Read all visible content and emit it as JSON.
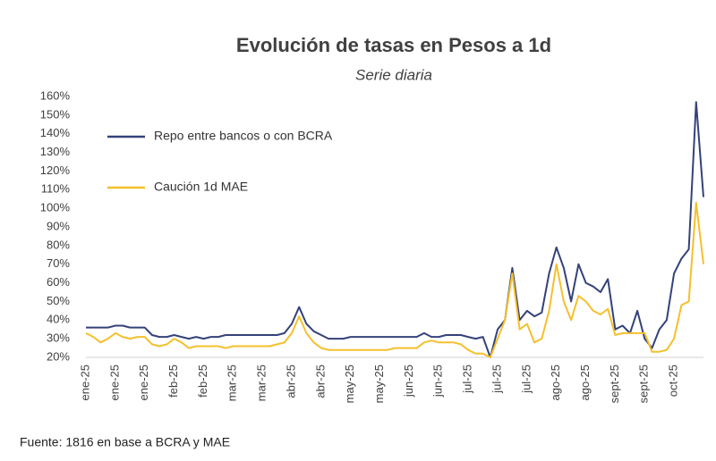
{
  "chart_data": {
    "type": "line",
    "title": "Evolución de tasas en Pesos a 1d",
    "subtitle": "Serie diaria",
    "source": "Fuente: 1816 en base a BCRA y MAE",
    "categories": [
      "ene-25",
      null,
      null,
      null,
      "ene-25",
      null,
      null,
      null,
      "ene-25",
      null,
      null,
      null,
      "feb-25",
      null,
      null,
      null,
      "feb-25",
      null,
      null,
      null,
      "mar-25",
      null,
      null,
      null,
      "mar-25",
      null,
      null,
      null,
      "abr-25",
      null,
      null,
      null,
      "abr-25",
      null,
      null,
      null,
      "may-25",
      null,
      null,
      null,
      "may-25",
      null,
      null,
      null,
      "jun-25",
      null,
      null,
      null,
      "jun-25",
      null,
      null,
      null,
      "jul-25",
      null,
      null,
      null,
      "jul-25",
      null,
      null,
      null,
      "jul-25",
      null,
      null,
      null,
      "ago-25",
      null,
      null,
      null,
      "ago-25",
      null,
      null,
      null,
      "sept-25",
      null,
      null,
      null,
      "sept-25",
      null,
      null,
      null,
      "oct-25",
      null,
      null,
      null,
      null
    ],
    "series": [
      {
        "name": "Repo entre bancos o con BCRA",
        "color": "#34427a",
        "values": [
          36,
          36,
          36,
          36,
          37,
          37,
          36,
          36,
          36,
          32,
          31,
          31,
          32,
          31,
          30,
          31,
          30,
          31,
          31,
          32,
          32,
          32,
          32,
          32,
          32,
          32,
          32,
          33,
          38,
          47,
          38,
          34,
          32,
          30,
          30,
          30,
          31,
          31,
          31,
          31,
          31,
          31,
          31,
          31,
          31,
          31,
          33,
          31,
          31,
          32,
          32,
          32,
          31,
          30,
          31,
          20,
          35,
          40,
          68,
          40,
          45,
          42,
          44,
          65,
          79,
          68,
          50,
          70,
          60,
          58,
          55,
          62,
          35,
          37,
          33,
          45,
          30,
          25,
          35,
          40,
          65,
          73,
          78,
          157,
          106
        ]
      },
      {
        "name": "Caución 1d MAE",
        "color": "#f5c02c",
        "values": [
          33,
          31,
          28,
          30,
          33,
          31,
          30,
          31,
          31,
          27,
          26,
          27,
          30,
          28,
          25,
          26,
          26,
          26,
          26,
          25,
          26,
          26,
          26,
          26,
          26,
          26,
          27,
          28,
          33,
          42,
          33,
          28,
          25,
          24,
          24,
          24,
          24,
          24,
          24,
          24,
          24,
          24,
          25,
          25,
          25,
          25,
          28,
          29,
          28,
          28,
          28,
          27,
          24,
          22,
          22,
          20,
          30,
          40,
          65,
          35,
          38,
          28,
          30,
          45,
          70,
          50,
          40,
          53,
          50,
          45,
          43,
          46,
          32,
          33,
          33,
          33,
          33,
          23,
          23,
          24,
          30,
          48,
          50,
          103,
          70
        ]
      }
    ],
    "ylim": [
      20,
      160
    ],
    "yticks": [
      {
        "value": 20,
        "label": "20%"
      },
      {
        "value": 30,
        "label": "30%"
      },
      {
        "value": 40,
        "label": "40%"
      },
      {
        "value": 50,
        "label": "50%"
      },
      {
        "value": 60,
        "label": "60%"
      },
      {
        "value": 70,
        "label": "70%"
      },
      {
        "value": 80,
        "label": "80%"
      },
      {
        "value": 90,
        "label": "90%"
      },
      {
        "value": 100,
        "label": "100%"
      },
      {
        "value": 110,
        "label": "110%"
      },
      {
        "value": 120,
        "label": "120%"
      },
      {
        "value": 130,
        "label": "130%"
      },
      {
        "value": 140,
        "label": "140%"
      },
      {
        "value": 150,
        "label": "150%"
      },
      {
        "value": 160,
        "label": "160%"
      }
    ],
    "grid": false,
    "legend": "upper left"
  }
}
